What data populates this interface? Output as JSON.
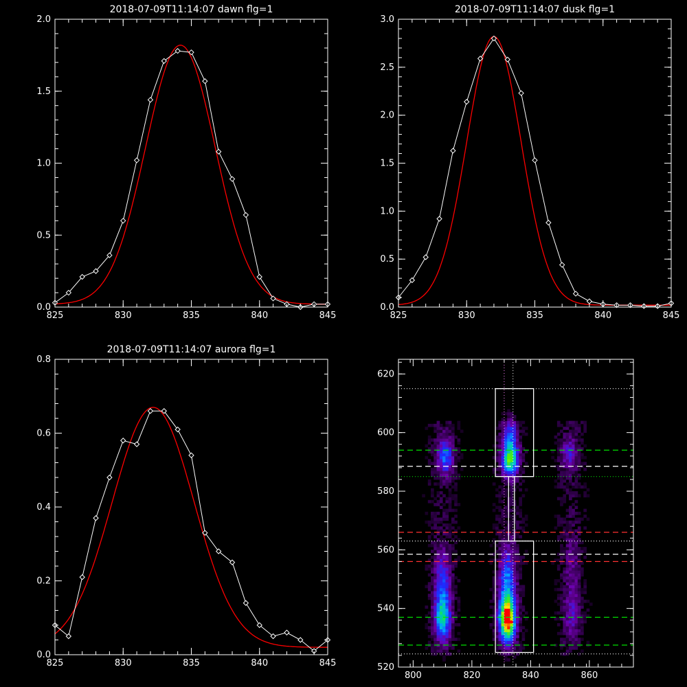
{
  "colors": {
    "background": "#000000",
    "axes": "#ffffff",
    "data_line": "#ffffff",
    "fit_line": "#ff0000"
  },
  "chart_data": [
    {
      "type": "line",
      "title": "2018-07-09T11:14:07 dawn flg=1",
      "xlim": [
        825,
        845
      ],
      "ylim": [
        0,
        2.0
      ],
      "xticks": [
        825,
        830,
        835,
        840,
        845
      ],
      "yticks": [
        0.0,
        0.5,
        1.0,
        1.5,
        2.0
      ],
      "tick_labels_x": [
        "825",
        "830",
        "835",
        "840",
        "845"
      ],
      "tick_labels_y": [
        "0.0",
        "0.5",
        "1.0",
        "1.5",
        "2.0"
      ],
      "series": [
        {
          "style": "white-diamond",
          "x": [
            825,
            826,
            827,
            828,
            829,
            830,
            831,
            832,
            833,
            834,
            835,
            836,
            837,
            838,
            839,
            840,
            841,
            842,
            843,
            844,
            845
          ],
          "y": [
            0.03,
            0.1,
            0.21,
            0.25,
            0.36,
            0.6,
            1.02,
            1.44,
            1.71,
            1.78,
            1.77,
            1.57,
            1.08,
            0.89,
            0.64,
            0.21,
            0.06,
            0.02,
            0.0,
            0.02,
            0.02
          ]
        },
        {
          "style": "red-fit",
          "gaussian": {
            "amp": 1.8,
            "center": 834.2,
            "sigma": 2.55,
            "offset": 0.02
          }
        }
      ]
    },
    {
      "type": "line",
      "title": "2018-07-09T11:14:07 dusk flg=1",
      "xlim": [
        825,
        845
      ],
      "ylim": [
        0,
        3.0
      ],
      "xticks": [
        825,
        830,
        835,
        840,
        845
      ],
      "yticks": [
        0.0,
        0.5,
        1.0,
        1.5,
        2.0,
        2.5,
        3.0
      ],
      "tick_labels_x": [
        "825",
        "830",
        "835",
        "840",
        "845"
      ],
      "tick_labels_y": [
        "0.0",
        "0.5",
        "1.0",
        "1.5",
        "2.0",
        "2.5",
        "3.0"
      ],
      "series": [
        {
          "style": "white-diamond",
          "x": [
            825,
            826,
            827,
            828,
            829,
            830,
            831,
            832,
            833,
            834,
            835,
            836,
            837,
            838,
            839,
            840,
            841,
            842,
            843,
            844,
            845
          ],
          "y": [
            0.1,
            0.28,
            0.52,
            0.92,
            1.63,
            2.14,
            2.59,
            2.8,
            2.58,
            2.23,
            1.53,
            0.88,
            0.44,
            0.14,
            0.06,
            0.03,
            0.02,
            0.02,
            0.01,
            0.01,
            0.04
          ]
        },
        {
          "style": "red-fit",
          "gaussian": {
            "amp": 2.8,
            "center": 832.0,
            "sigma": 2.0,
            "offset": 0.02
          }
        }
      ]
    },
    {
      "type": "line",
      "title": "2018-07-09T11:14:07 aurora flg=1",
      "xlim": [
        825,
        845
      ],
      "ylim": [
        0,
        0.8
      ],
      "xticks": [
        825,
        830,
        835,
        840,
        845
      ],
      "yticks": [
        0.0,
        0.2,
        0.4,
        0.6,
        0.8
      ],
      "tick_labels_x": [
        "825",
        "830",
        "835",
        "840",
        "845"
      ],
      "tick_labels_y": [
        "0.0",
        "0.2",
        "0.4",
        "0.6",
        "0.8"
      ],
      "series": [
        {
          "style": "white-diamond",
          "x": [
            825,
            826,
            827,
            828,
            829,
            830,
            831,
            832,
            833,
            834,
            835,
            836,
            837,
            838,
            839,
            840,
            841,
            842,
            843,
            844,
            845
          ],
          "y": [
            0.08,
            0.05,
            0.21,
            0.37,
            0.48,
            0.58,
            0.57,
            0.66,
            0.66,
            0.61,
            0.54,
            0.33,
            0.28,
            0.25,
            0.14,
            0.08,
            0.05,
            0.06,
            0.04,
            0.01,
            0.04
          ]
        },
        {
          "style": "red-fit",
          "gaussian": {
            "amp": 0.65,
            "center": 832.2,
            "sigma": 3.0,
            "offset": 0.02
          }
        }
      ]
    },
    {
      "type": "heatmap",
      "title": "",
      "xlim": [
        795,
        875
      ],
      "ylim": [
        520,
        625
      ],
      "xticks": [
        800,
        820,
        840,
        860
      ],
      "yticks": [
        520,
        540,
        560,
        580,
        600,
        620
      ],
      "tick_labels_x": [
        "800",
        "820",
        "840",
        "860"
      ],
      "tick_labels_y": [
        "520",
        "540",
        "560",
        "580",
        "600",
        "620"
      ],
      "colormap": "black-purple-blue-cyan-green-yellow-red",
      "emission_sources": [
        {
          "x": 810,
          "y": 537,
          "sx": 2.0,
          "sy": 5.5,
          "amp": 0.55
        },
        {
          "x": 810,
          "y": 550,
          "sx": 2.0,
          "sy": 7.0,
          "amp": 0.3
        },
        {
          "x": 811,
          "y": 592,
          "sx": 2.0,
          "sy": 4.5,
          "amp": 0.4
        },
        {
          "x": 832,
          "y": 536,
          "sx": 2.0,
          "sy": 5.0,
          "amp": 0.85
        },
        {
          "x": 832,
          "y": 548,
          "sx": 2.0,
          "sy": 9.0,
          "amp": 0.45
        },
        {
          "x": 833,
          "y": 591,
          "sx": 2.0,
          "sy": 4.0,
          "amp": 0.7
        },
        {
          "x": 833,
          "y": 600,
          "sx": 1.8,
          "sy": 4.0,
          "amp": 0.3
        },
        {
          "x": 854,
          "y": 538,
          "sx": 2.0,
          "sy": 6.0,
          "amp": 0.2
        },
        {
          "x": 853,
          "y": 593,
          "sx": 2.0,
          "sy": 4.0,
          "amp": 0.25
        },
        {
          "x": 854,
          "y": 555,
          "sx": 2.0,
          "sy": 8.0,
          "amp": 0.12
        }
      ],
      "peak_pixel": {
        "x": 833,
        "y": 535
      },
      "boxes": [
        {
          "x0": 828,
          "x1": 841,
          "y0": 585,
          "y1": 615
        },
        {
          "x0": 828,
          "x1": 841,
          "y0": 525,
          "y1": 563
        },
        {
          "x0": 832.5,
          "x1": 834.5,
          "y0": 563,
          "y1": 585
        }
      ],
      "hlines": [
        {
          "y": 615,
          "color": "#ffffff",
          "dash": "1,3"
        },
        {
          "y": 594,
          "color": "#00e000",
          "dash": "8,5"
        },
        {
          "y": 588.5,
          "color": "#ffffff",
          "dash": "8,5"
        },
        {
          "y": 585,
          "color": "#00e000",
          "dash": "1,3"
        },
        {
          "y": 566,
          "color": "#ff3030",
          "dash": "8,5"
        },
        {
          "y": 563,
          "color": "#ffffff",
          "dash": "1,3"
        },
        {
          "y": 558.5,
          "color": "#ffffff",
          "dash": "8,5"
        },
        {
          "y": 556,
          "color": "#ff3030",
          "dash": "8,5"
        },
        {
          "y": 537,
          "color": "#00e000",
          "dash": "8,5"
        },
        {
          "y": 527.5,
          "color": "#00e000",
          "dash": "8,5"
        },
        {
          "y": 524.5,
          "color": "#ffffff",
          "dash": "1,3"
        }
      ],
      "vlines": [
        {
          "x": 831,
          "color": "#ff80ff",
          "dash": "1,3"
        },
        {
          "x": 834,
          "color": "#ffffff",
          "dash": "1,3"
        }
      ]
    }
  ]
}
